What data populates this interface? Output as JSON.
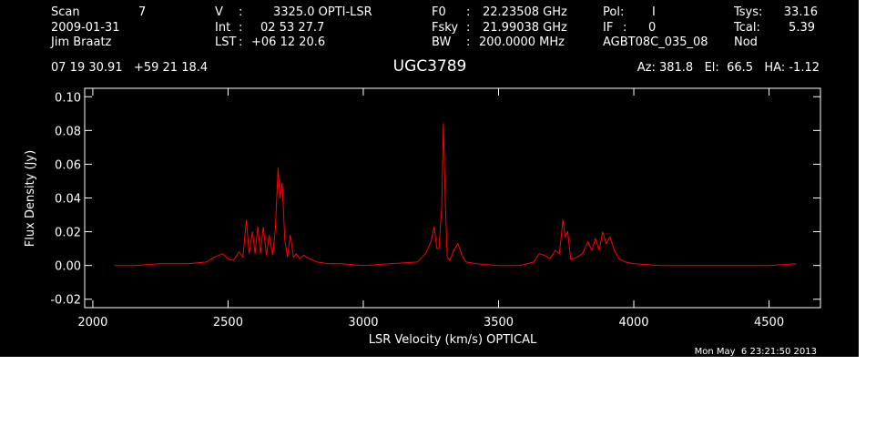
{
  "header": {
    "scan_label": "Scan",
    "scan_value": "7",
    "date": "2009-01-31",
    "observer": "Jim Braatz",
    "v_label": "V",
    "v_value": "3325.0 OPTI-LSR",
    "int_label": "Int",
    "int_value": "02 53 27.7",
    "lst_label": "LST",
    "lst_value": "+06 12 20.6",
    "f0_label": "F0",
    "f0_value": "22.23508 GHz",
    "fsky_label": "Fsky",
    "fsky_value": "21.99038 GHz",
    "bw_label": "BW",
    "bw_value": "200.0000 MHz",
    "pol_label": "Pol:",
    "pol_value": "I",
    "if_label": "IF",
    "if_value": "0",
    "project": "AGBT08C_035_08",
    "tsys_label": "Tsys:",
    "tsys_value": "33.16",
    "tcal_label": "Tcal:",
    "tcal_value": "5.39",
    "mode": "Nod",
    "coords": "07 19 30.91   +59 21 18.4",
    "source": "UGC3789",
    "pointing": "Az: 381.8   El:  66.5   HA: -1.12"
  },
  "footer": {
    "timestamp": "Mon May  6 23:21:50 2013"
  },
  "colors": {
    "background": "#000000",
    "axes": "#ffffff",
    "spectrum": "#ff0000"
  },
  "chart_data": {
    "type": "line",
    "title": "UGC3789",
    "xlabel": "LSR Velocity (km/s) OPTICAL",
    "ylabel": "Flux Density (Jy)",
    "xlim": [
      1970,
      4690
    ],
    "ylim": [
      -0.025,
      0.105
    ],
    "xticks": [
      "2000",
      "2500",
      "3000",
      "3500",
      "4000",
      "4500"
    ],
    "xtick_values": [
      2000,
      2500,
      3000,
      3500,
      4000,
      4500
    ],
    "yticks": [
      "-0.02",
      "0.00",
      "0.02",
      "0.04",
      "0.06",
      "0.08",
      "0.10"
    ],
    "ytick_values": [
      -0.02,
      0.0,
      0.02,
      0.04,
      0.06,
      0.08,
      0.1
    ],
    "grid": false,
    "series": [
      {
        "color": "#ff0000",
        "x": [
          2080,
          2150,
          2250,
          2350,
          2420,
          2450,
          2480,
          2500,
          2520,
          2540,
          2555,
          2568,
          2578,
          2590,
          2600,
          2610,
          2620,
          2630,
          2642,
          2652,
          2665,
          2675,
          2685,
          2692,
          2700,
          2710,
          2720,
          2730,
          2742,
          2752,
          2765,
          2780,
          2800,
          2830,
          2870,
          2920,
          3000,
          3100,
          3200,
          3230,
          3250,
          3262,
          3272,
          3280,
          3290,
          3296,
          3303,
          3310,
          3320,
          3335,
          3350,
          3365,
          3380,
          3420,
          3500,
          3580,
          3630,
          3650,
          3670,
          3690,
          3710,
          3725,
          3738,
          3746,
          3756,
          3766,
          3778,
          3790,
          3810,
          3830,
          3845,
          3858,
          3872,
          3885,
          3898,
          3912,
          3928,
          3945,
          3970,
          4000,
          4100,
          4200,
          4300,
          4400,
          4500,
          4600
        ],
        "y": [
          0.0,
          0.0,
          0.001,
          0.001,
          0.002,
          0.005,
          0.007,
          0.004,
          0.003,
          0.008,
          0.005,
          0.027,
          0.007,
          0.02,
          0.007,
          0.023,
          0.007,
          0.023,
          0.006,
          0.018,
          0.006,
          0.022,
          0.058,
          0.04,
          0.049,
          0.015,
          0.005,
          0.018,
          0.005,
          0.007,
          0.004,
          0.006,
          0.004,
          0.002,
          0.001,
          0.001,
          0.0,
          0.001,
          0.002,
          0.007,
          0.014,
          0.023,
          0.01,
          0.01,
          0.035,
          0.084,
          0.038,
          0.005,
          0.003,
          0.009,
          0.013,
          0.006,
          0.002,
          0.001,
          0.0,
          0.0,
          0.002,
          0.007,
          0.006,
          0.004,
          0.009,
          0.007,
          0.027,
          0.017,
          0.02,
          0.004,
          0.004,
          0.005,
          0.007,
          0.014,
          0.009,
          0.016,
          0.009,
          0.02,
          0.013,
          0.017,
          0.009,
          0.004,
          0.002,
          0.001,
          0.0,
          0.0,
          0.0,
          0.0,
          0.0,
          0.001
        ]
      }
    ]
  }
}
